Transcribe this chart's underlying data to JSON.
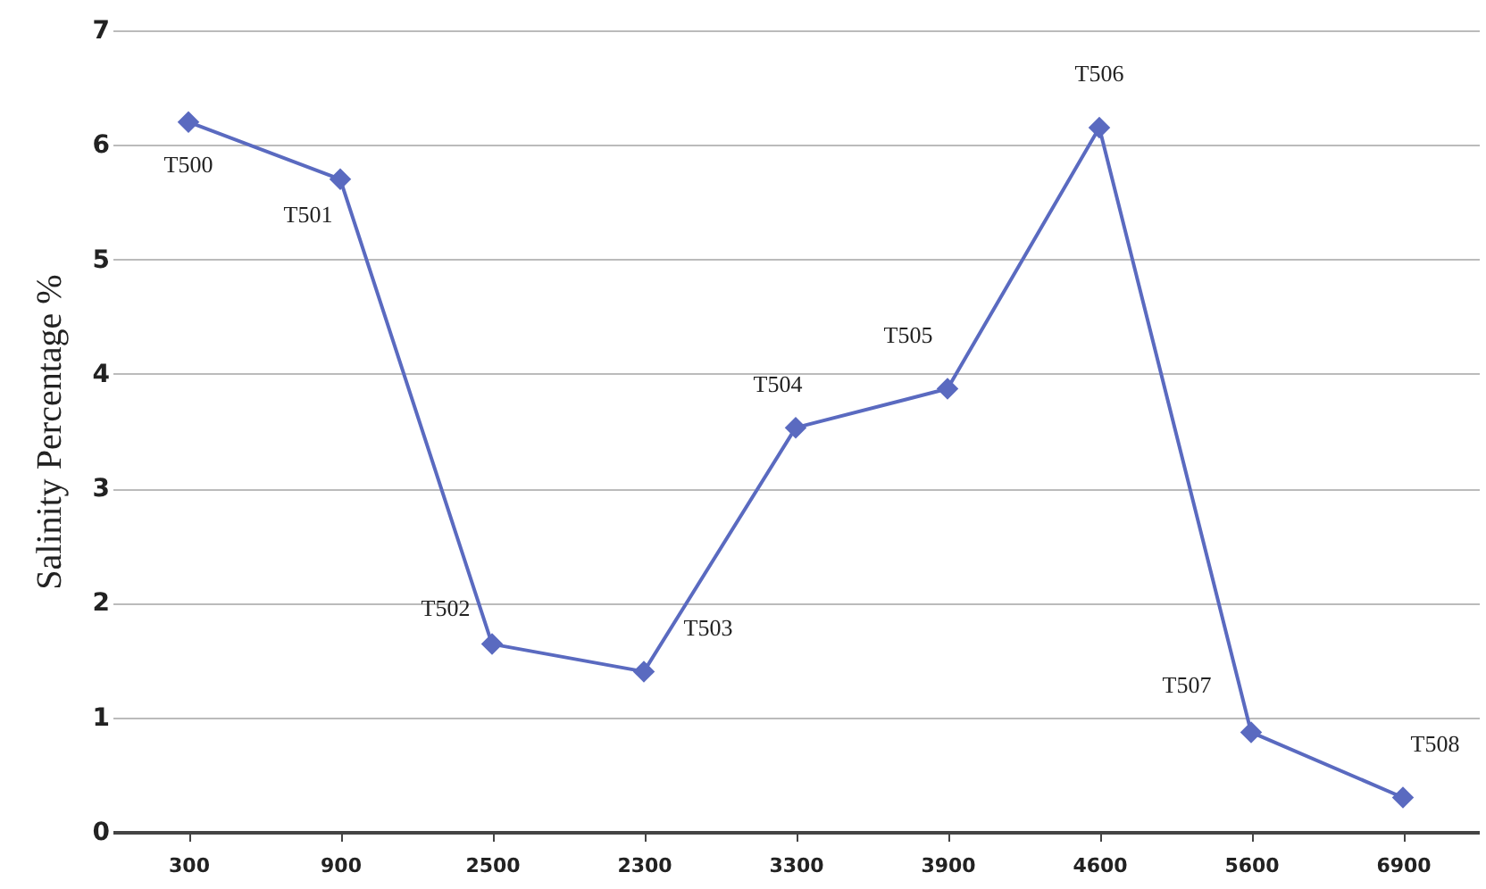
{
  "chart_data": {
    "type": "line",
    "ylabel": "Salinity Percentage %",
    "categories": [
      "300",
      "900",
      "2500",
      "2300",
      "3300",
      "3900",
      "4600",
      "5600",
      "6900"
    ],
    "series": [
      {
        "color": "#5a6ac0",
        "values": [
          6.2,
          5.7,
          1.64,
          1.4,
          3.53,
          3.87,
          6.15,
          0.87,
          0.3
        ]
      }
    ],
    "ylim": [
      0,
      7
    ],
    "yticks": [
      0,
      1,
      2,
      3,
      4,
      5,
      6,
      7
    ],
    "grid": "y",
    "marker": "diamond",
    "line_style": "solid",
    "annotations": [
      {
        "text": "T500",
        "x": "300",
        "y": 6.2
      },
      {
        "text": "T501",
        "x": "900",
        "y": 5.7
      },
      {
        "text": "T502",
        "x": "2500",
        "y": 1.64
      },
      {
        "text": "T503",
        "x": "2300",
        "y": 1.4
      },
      {
        "text": "T504",
        "x": "3300",
        "y": 3.53
      },
      {
        "text": "T505",
        "x": "3900",
        "y": 3.87
      },
      {
        "text": "T506",
        "x": "4600",
        "y": 6.15
      },
      {
        "text": "T507",
        "x": "5600",
        "y": 0.87
      },
      {
        "text": "T508",
        "x": "6900",
        "y": 0.3
      }
    ]
  }
}
